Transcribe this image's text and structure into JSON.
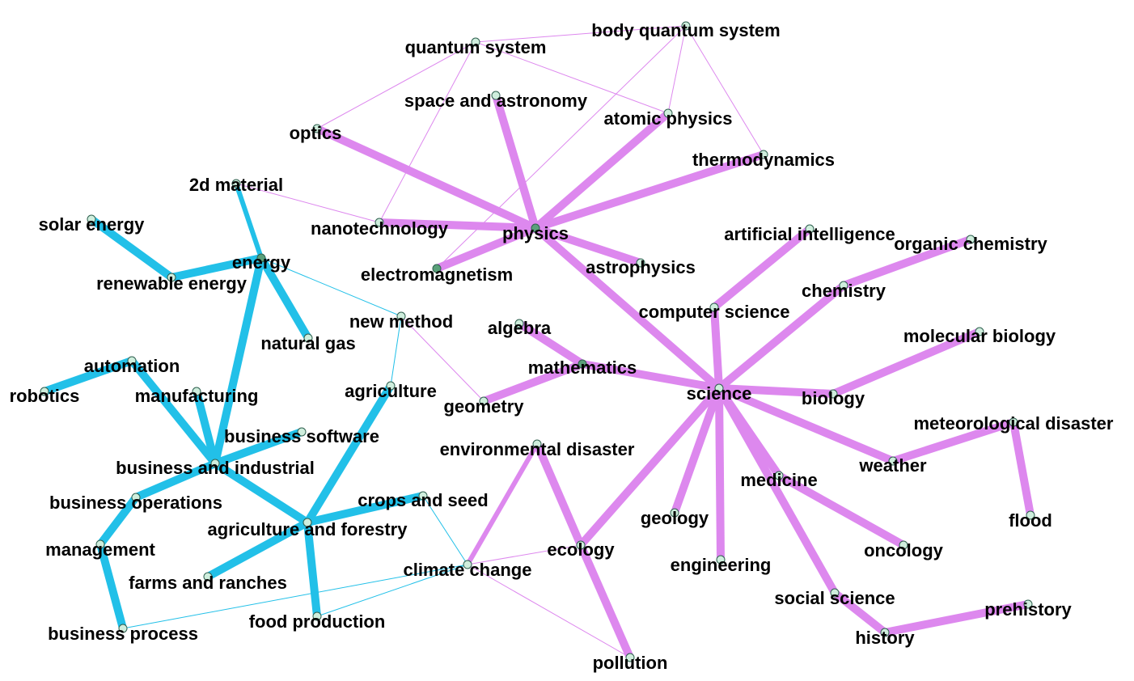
{
  "colors": {
    "cluster_a": "#22c0e8",
    "cluster_b": "#dd88ee",
    "node_fill": "#cfeedd",
    "node_fill_dark": "#5aa07a",
    "label": "#000000"
  },
  "nodes": [
    {
      "id": "quantum system",
      "label": "quantum system"
    },
    {
      "id": "body quantum system",
      "label": "body quantum system"
    },
    {
      "id": "space and astronomy",
      "label": "space and astronomy"
    },
    {
      "id": "atomic physics",
      "label": "atomic physics"
    },
    {
      "id": "optics",
      "label": "optics"
    },
    {
      "id": "thermodynamics",
      "label": "thermodynamics"
    },
    {
      "id": "2d material",
      "label": "2d material"
    },
    {
      "id": "solar energy",
      "label": "solar energy"
    },
    {
      "id": "nanotechnology",
      "label": "nanotechnology"
    },
    {
      "id": "physics",
      "label": "physics"
    },
    {
      "id": "artificial intelligence",
      "label": "artificial intelligence"
    },
    {
      "id": "organic chemistry",
      "label": "organic chemistry"
    },
    {
      "id": "energy",
      "label": "energy"
    },
    {
      "id": "renewable energy",
      "label": "renewable energy"
    },
    {
      "id": "electromagnetism",
      "label": "electromagnetism"
    },
    {
      "id": "astrophysics",
      "label": "astrophysics"
    },
    {
      "id": "chemistry",
      "label": "chemistry"
    },
    {
      "id": "computer science",
      "label": "computer science"
    },
    {
      "id": "new method",
      "label": "new method"
    },
    {
      "id": "algebra",
      "label": "algebra"
    },
    {
      "id": "molecular biology",
      "label": "molecular biology"
    },
    {
      "id": "natural gas",
      "label": "natural gas"
    },
    {
      "id": "automation",
      "label": "automation"
    },
    {
      "id": "mathematics",
      "label": "mathematics"
    },
    {
      "id": "robotics",
      "label": "robotics"
    },
    {
      "id": "manufacturing",
      "label": "manufacturing"
    },
    {
      "id": "agriculture",
      "label": "agriculture"
    },
    {
      "id": "science",
      "label": "science"
    },
    {
      "id": "biology",
      "label": "biology"
    },
    {
      "id": "geometry",
      "label": "geometry"
    },
    {
      "id": "meteorological disaster",
      "label": "meteorological disaster"
    },
    {
      "id": "business software",
      "label": "business software"
    },
    {
      "id": "environmental disaster",
      "label": "environmental disaster"
    },
    {
      "id": "business and industrial",
      "label": "business and industrial"
    },
    {
      "id": "weather",
      "label": "weather"
    },
    {
      "id": "medicine",
      "label": "medicine"
    },
    {
      "id": "crops and seed",
      "label": "crops and seed"
    },
    {
      "id": "business operations",
      "label": "business operations"
    },
    {
      "id": "geology",
      "label": "geology"
    },
    {
      "id": "flood",
      "label": "flood"
    },
    {
      "id": "agriculture and forestry",
      "label": "agriculture and forestry"
    },
    {
      "id": "management",
      "label": "management"
    },
    {
      "id": "ecology",
      "label": "ecology"
    },
    {
      "id": "oncology",
      "label": "oncology"
    },
    {
      "id": "engineering",
      "label": "engineering"
    },
    {
      "id": "climate change",
      "label": "climate change"
    },
    {
      "id": "farms and ranches",
      "label": "farms and ranches"
    },
    {
      "id": "social science",
      "label": "social science"
    },
    {
      "id": "prehistory",
      "label": "prehistory"
    },
    {
      "id": "food production",
      "label": "food production"
    },
    {
      "id": "business process",
      "label": "business process"
    },
    {
      "id": "history",
      "label": "history"
    },
    {
      "id": "pollution",
      "label": "pollution"
    }
  ],
  "edges": [
    {
      "source": "solar energy",
      "target": "renewable energy",
      "cluster": "a",
      "weight": "strong"
    },
    {
      "source": "renewable energy",
      "target": "energy",
      "cluster": "a",
      "weight": "strong"
    },
    {
      "source": "energy",
      "target": "natural gas",
      "cluster": "a",
      "weight": "strong"
    },
    {
      "source": "energy",
      "target": "2d material",
      "cluster": "a",
      "weight": "medium"
    },
    {
      "source": "energy",
      "target": "business and industrial",
      "cluster": "a",
      "weight": "strong"
    },
    {
      "source": "energy",
      "target": "new method",
      "cluster": "a",
      "weight": "weak"
    },
    {
      "source": "new method",
      "target": "agriculture",
      "cluster": "a",
      "weight": "weak"
    },
    {
      "source": "automation",
      "target": "robotics",
      "cluster": "a",
      "weight": "strong"
    },
    {
      "source": "automation",
      "target": "business and industrial",
      "cluster": "a",
      "weight": "strong"
    },
    {
      "source": "manufacturing",
      "target": "business and industrial",
      "cluster": "a",
      "weight": "strong"
    },
    {
      "source": "business software",
      "target": "business and industrial",
      "cluster": "a",
      "weight": "strong"
    },
    {
      "source": "business and industrial",
      "target": "business operations",
      "cluster": "a",
      "weight": "strong"
    },
    {
      "source": "business and industrial",
      "target": "agriculture and forestry",
      "cluster": "a",
      "weight": "strong"
    },
    {
      "source": "business operations",
      "target": "management",
      "cluster": "a",
      "weight": "strong"
    },
    {
      "source": "management",
      "target": "business process",
      "cluster": "a",
      "weight": "strong"
    },
    {
      "source": "agriculture",
      "target": "agriculture and forestry",
      "cluster": "a",
      "weight": "strong"
    },
    {
      "source": "crops and seed",
      "target": "agriculture and forestry",
      "cluster": "a",
      "weight": "strong"
    },
    {
      "source": "agriculture and forestry",
      "target": "farms and ranches",
      "cluster": "a",
      "weight": "strong"
    },
    {
      "source": "agriculture and forestry",
      "target": "food production",
      "cluster": "a",
      "weight": "strong"
    },
    {
      "source": "crops and seed",
      "target": "climate change",
      "cluster": "a",
      "weight": "weak"
    },
    {
      "source": "climate change",
      "target": "business process",
      "cluster": "a",
      "weight": "weak"
    },
    {
      "source": "climate change",
      "target": "food production",
      "cluster": "a",
      "weight": "weak"
    },
    {
      "source": "physics",
      "target": "optics",
      "cluster": "b",
      "weight": "strong"
    },
    {
      "source": "physics",
      "target": "space and astronomy",
      "cluster": "b",
      "weight": "strong"
    },
    {
      "source": "physics",
      "target": "atomic physics",
      "cluster": "b",
      "weight": "strong"
    },
    {
      "source": "physics",
      "target": "thermodynamics",
      "cluster": "b",
      "weight": "strong"
    },
    {
      "source": "physics",
      "target": "nanotechnology",
      "cluster": "b",
      "weight": "strong"
    },
    {
      "source": "physics",
      "target": "electromagnetism",
      "cluster": "b",
      "weight": "strong"
    },
    {
      "source": "physics",
      "target": "astrophysics",
      "cluster": "b",
      "weight": "strong"
    },
    {
      "source": "physics",
      "target": "science",
      "cluster": "b",
      "weight": "strong"
    },
    {
      "source": "quantum system",
      "target": "body quantum system",
      "cluster": "b",
      "weight": "weak"
    },
    {
      "source": "quantum system",
      "target": "optics",
      "cluster": "b",
      "weight": "weak"
    },
    {
      "source": "quantum system",
      "target": "atomic physics",
      "cluster": "b",
      "weight": "weak"
    },
    {
      "source": "quantum system",
      "target": "nanotechnology",
      "cluster": "b",
      "weight": "weak"
    },
    {
      "source": "body quantum system",
      "target": "atomic physics",
      "cluster": "b",
      "weight": "weak"
    },
    {
      "source": "body quantum system",
      "target": "thermodynamics",
      "cluster": "b",
      "weight": "weak"
    },
    {
      "source": "body quantum system",
      "target": "electromagnetism",
      "cluster": "b",
      "weight": "weak"
    },
    {
      "source": "2d material",
      "target": "nanotechnology",
      "cluster": "b",
      "weight": "weak"
    },
    {
      "source": "new method",
      "target": "geometry",
      "cluster": "b",
      "weight": "weak"
    },
    {
      "source": "science",
      "target": "computer science",
      "cluster": "b",
      "weight": "strong"
    },
    {
      "source": "computer science",
      "target": "artificial intelligence",
      "cluster": "b",
      "weight": "strong"
    },
    {
      "source": "science",
      "target": "chemistry",
      "cluster": "b",
      "weight": "strong"
    },
    {
      "source": "chemistry",
      "target": "organic chemistry",
      "cluster": "b",
      "weight": "strong"
    },
    {
      "source": "science",
      "target": "biology",
      "cluster": "b",
      "weight": "strong"
    },
    {
      "source": "biology",
      "target": "molecular biology",
      "cluster": "b",
      "weight": "strong"
    },
    {
      "source": "science",
      "target": "mathematics",
      "cluster": "b",
      "weight": "strong"
    },
    {
      "source": "mathematics",
      "target": "algebra",
      "cluster": "b",
      "weight": "strong"
    },
    {
      "source": "mathematics",
      "target": "geometry",
      "cluster": "b",
      "weight": "strong"
    },
    {
      "source": "science",
      "target": "weather",
      "cluster": "b",
      "weight": "strong"
    },
    {
      "source": "weather",
      "target": "meteorological disaster",
      "cluster": "b",
      "weight": "strong"
    },
    {
      "source": "meteorological disaster",
      "target": "flood",
      "cluster": "b",
      "weight": "strong"
    },
    {
      "source": "science",
      "target": "medicine",
      "cluster": "b",
      "weight": "strong"
    },
    {
      "source": "medicine",
      "target": "oncology",
      "cluster": "b",
      "weight": "strong"
    },
    {
      "source": "science",
      "target": "geology",
      "cluster": "b",
      "weight": "strong"
    },
    {
      "source": "science",
      "target": "engineering",
      "cluster": "b",
      "weight": "strong"
    },
    {
      "source": "science",
      "target": "ecology",
      "cluster": "b",
      "weight": "strong"
    },
    {
      "source": "science",
      "target": "social science",
      "cluster": "b",
      "weight": "strong"
    },
    {
      "source": "social science",
      "target": "history",
      "cluster": "b",
      "weight": "strong"
    },
    {
      "source": "history",
      "target": "prehistory",
      "cluster": "b",
      "weight": "strong"
    },
    {
      "source": "ecology",
      "target": "environmental disaster",
      "cluster": "b",
      "weight": "strong"
    },
    {
      "source": "ecology",
      "target": "pollution",
      "cluster": "b",
      "weight": "strong"
    },
    {
      "source": "environmental disaster",
      "target": "climate change",
      "cluster": "b",
      "weight": "medium"
    },
    {
      "source": "climate change",
      "target": "ecology",
      "cluster": "b",
      "weight": "weak"
    },
    {
      "source": "climate change",
      "target": "pollution",
      "cluster": "b",
      "weight": "weak"
    }
  ]
}
